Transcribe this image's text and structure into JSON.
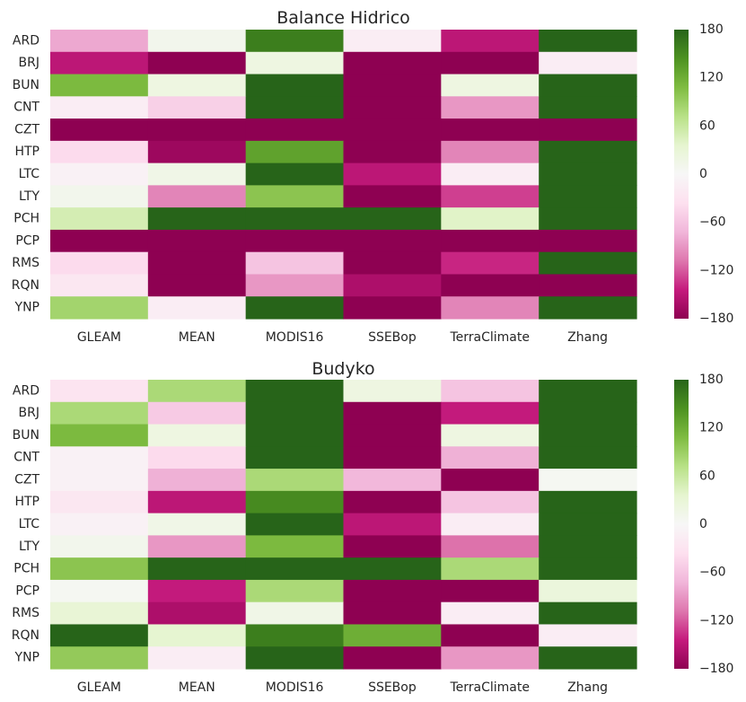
{
  "chart_data": [
    {
      "type": "heatmap",
      "title": "Balance Hidrico",
      "xlabel": "",
      "ylabel": "",
      "columns": [
        "GLEAM",
        "MEAN",
        "MODIS16",
        "SSEBop",
        "TerraClimate",
        "Zhang"
      ],
      "rows": [
        "ARD",
        "BRJ",
        "BUN",
        "CNT",
        "CZT",
        "HTP",
        "LTC",
        "LTY",
        "PCH",
        "PCP",
        "RMS",
        "RQN",
        "YNP"
      ],
      "values": [
        [
          -80,
          10,
          160,
          -15,
          -150,
          180
        ],
        [
          -150,
          -180,
          20,
          -180,
          -180,
          -15
        ],
        [
          110,
          20,
          180,
          -180,
          20,
          180
        ],
        [
          -15,
          -50,
          180,
          -180,
          -90,
          180
        ],
        [
          -180,
          -180,
          -180,
          -180,
          -180,
          -180
        ],
        [
          -40,
          -170,
          130,
          -180,
          -100,
          180
        ],
        [
          -10,
          15,
          180,
          -150,
          -15,
          180
        ],
        [
          10,
          -100,
          100,
          -180,
          -130,
          180
        ],
        [
          50,
          180,
          180,
          180,
          40,
          180
        ],
        [
          -180,
          -180,
          -180,
          -180,
          -180,
          -180
        ],
        [
          -40,
          -180,
          -60,
          -180,
          -140,
          180
        ],
        [
          -25,
          -180,
          -90,
          -160,
          -180,
          -180
        ],
        [
          85,
          -15,
          180,
          -180,
          -100,
          180
        ]
      ],
      "colorbar": {
        "min": -180,
        "max": 180,
        "ticks": [
          180,
          120,
          60,
          0,
          -60,
          -120,
          -180
        ],
        "colormap": "PiYG"
      }
    },
    {
      "type": "heatmap",
      "title": "Budyko",
      "xlabel": "",
      "ylabel": "",
      "columns": [
        "GLEAM",
        "MEAN",
        "MODIS16",
        "SSEBop",
        "TerraClimate",
        "Zhang"
      ],
      "rows": [
        "ARD",
        "BRJ",
        "BUN",
        "CNT",
        "CZT",
        "HTP",
        "LTC",
        "LTY",
        "PCH",
        "PCP",
        "RMS",
        "RQN",
        "YNP"
      ],
      "values": [
        [
          -30,
          80,
          180,
          20,
          -60,
          180
        ],
        [
          80,
          -55,
          180,
          -180,
          -145,
          180
        ],
        [
          110,
          20,
          180,
          -180,
          20,
          180
        ],
        [
          -10,
          -40,
          180,
          -180,
          -75,
          180
        ],
        [
          -10,
          -75,
          80,
          -70,
          -180,
          5
        ],
        [
          -25,
          -150,
          150,
          -180,
          -60,
          180
        ],
        [
          -10,
          15,
          180,
          -150,
          -15,
          180
        ],
        [
          10,
          -90,
          110,
          -180,
          -110,
          180
        ],
        [
          100,
          180,
          180,
          180,
          80,
          180
        ],
        [
          5,
          -145,
          80,
          -180,
          -180,
          25
        ],
        [
          30,
          -160,
          15,
          -180,
          -15,
          180
        ],
        [
          180,
          35,
          160,
          120,
          -180,
          -15
        ],
        [
          95,
          -15,
          180,
          -180,
          -90,
          180
        ]
      ],
      "colorbar": {
        "min": -180,
        "max": 180,
        "ticks": [
          180,
          120,
          60,
          0,
          -60,
          -120,
          -180
        ],
        "colormap": "PiYG"
      }
    }
  ]
}
